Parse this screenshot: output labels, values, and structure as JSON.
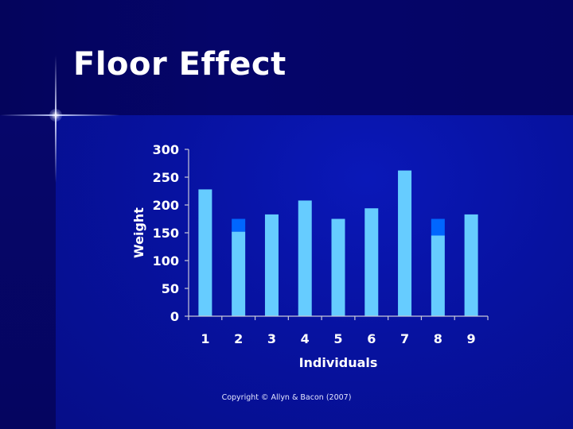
{
  "slide": {
    "title": "Floor Effect",
    "copyright": "Copyright © Allyn & Bacon (2007)"
  },
  "colors": {
    "bar_fill": "#66ccff",
    "bar_highlight": "#0066ff",
    "text": "#ffffff",
    "axis": "#c8c8d8"
  },
  "chart_data": {
    "type": "bar",
    "xlabel": "Individuals",
    "ylabel": "Weight",
    "ylim": [
      0,
      300
    ],
    "yticks": [
      0,
      50,
      100,
      150,
      200,
      250,
      300
    ],
    "categories": [
      "1",
      "2",
      "3",
      "4",
      "5",
      "6",
      "7",
      "8",
      "9"
    ],
    "values": [
      228,
      152,
      183,
      208,
      175,
      194,
      262,
      145,
      183
    ],
    "highlight_segments": [
      {
        "category": "2",
        "from": 152,
        "to": 175
      },
      {
        "category": "8",
        "from": 145,
        "to": 175
      }
    ],
    "grid": false,
    "legend": "none"
  }
}
